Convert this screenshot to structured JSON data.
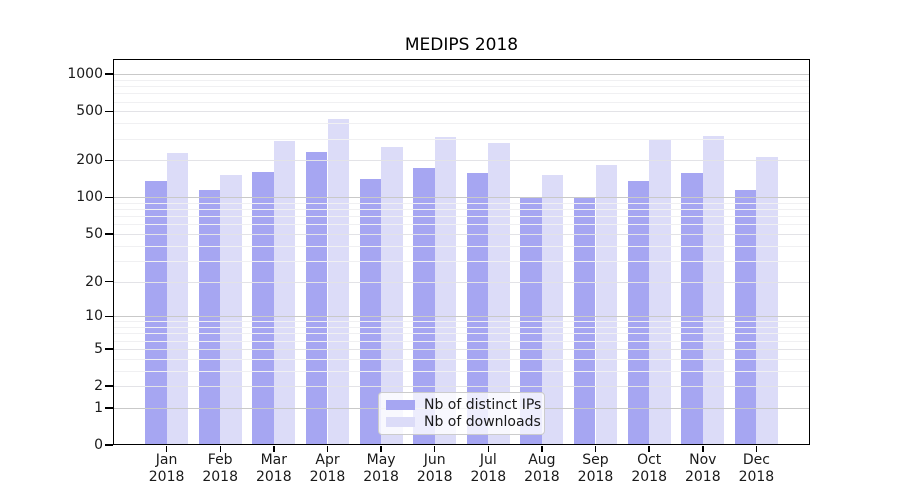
{
  "chart_data": {
    "type": "bar",
    "title": "MEDIPS 2018",
    "scale": "log1p",
    "grid": true,
    "legend_position": "lower center",
    "year": "2018",
    "categories": [
      "Jan",
      "Feb",
      "Mar",
      "Apr",
      "May",
      "Jun",
      "Jul",
      "Aug",
      "Sep",
      "Oct",
      "Nov",
      "Dec"
    ],
    "yticks": [
      0,
      1,
      2,
      5,
      10,
      20,
      50,
      100,
      200,
      500,
      1000
    ],
    "ylim": [
      0,
      1326
    ],
    "series": [
      {
        "name": "Nb of distinct IPs",
        "color": "#a6a6f2",
        "values": [
          136,
          115,
          162,
          235,
          140,
          172,
          157,
          101,
          100,
          137,
          159,
          115
        ]
      },
      {
        "name": "Nb of downloads",
        "color": "#dcdcf8",
        "values": [
          228,
          152,
          289,
          435,
          255,
          311,
          278,
          152,
          183,
          293,
          315,
          214
        ]
      }
    ]
  }
}
